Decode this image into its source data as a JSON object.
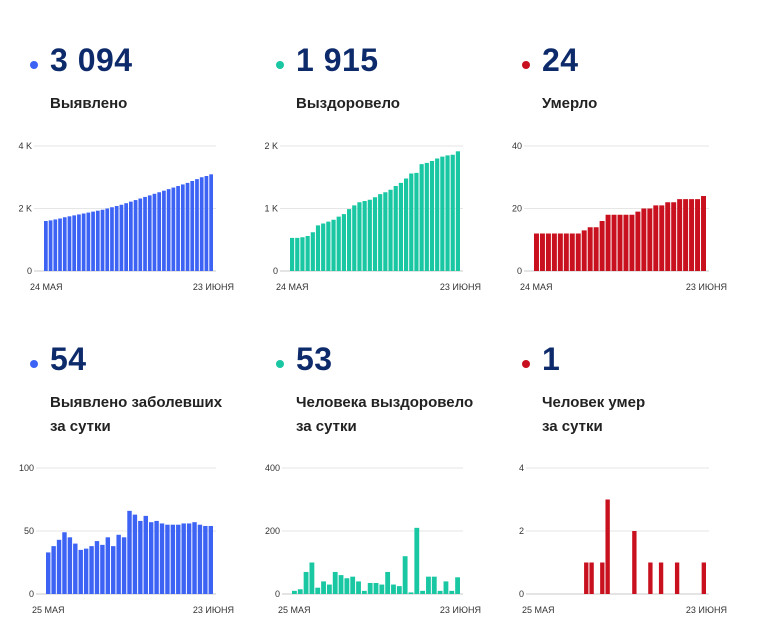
{
  "colors": {
    "blue": "#3d63f5",
    "green": "#19c7a3",
    "red": "#c8101e",
    "number": "#0d2a6b"
  },
  "panels": [
    {
      "dot_color": "#3d63f5",
      "value": "3 094",
      "label_lines": [
        "Выявлено"
      ]
    },
    {
      "dot_color": "#19c7a3",
      "value": "1 915",
      "label_lines": [
        "Выздоровело"
      ]
    },
    {
      "dot_color": "#c8101e",
      "value": "24",
      "label_lines": [
        "Умерло"
      ]
    },
    {
      "dot_color": "#3d63f5",
      "value": "54",
      "label_lines": [
        "Выявлено заболевших",
        "за сутки"
      ]
    },
    {
      "dot_color": "#19c7a3",
      "value": "53",
      "label_lines": [
        "Человека выздоровело",
        "за сутки"
      ]
    },
    {
      "dot_color": "#c8101e",
      "value": "1",
      "label_lines": [
        "Человек умер",
        "за сутки"
      ]
    }
  ],
  "chart_data": [
    {
      "type": "bar",
      "color": "#3d63f5",
      "ylim": [
        0,
        4000
      ],
      "yticks": [
        {
          "v": 0,
          "label": "0"
        },
        {
          "v": 2000,
          "label": "2 K"
        },
        {
          "v": 4000,
          "label": "4 K"
        }
      ],
      "xlabels": [
        "24 МАЯ",
        "23 ИЮНЯ"
      ],
      "values": [
        1600,
        1620,
        1650,
        1680,
        1720,
        1750,
        1780,
        1810,
        1840,
        1870,
        1900,
        1930,
        1960,
        2000,
        2040,
        2080,
        2120,
        2170,
        2220,
        2270,
        2320,
        2370,
        2420,
        2470,
        2520,
        2570,
        2620,
        2670,
        2720,
        2770,
        2820,
        2880,
        2940,
        3000,
        3040,
        3094
      ]
    },
    {
      "type": "bar",
      "color": "#19c7a3",
      "ylim": [
        0,
        2000
      ],
      "yticks": [
        {
          "v": 0,
          "label": "0"
        },
        {
          "v": 1000,
          "label": "1 K"
        },
        {
          "v": 2000,
          "label": "2 K"
        }
      ],
      "xlabels": [
        "24 МАЯ",
        "23 ИЮНЯ"
      ],
      "values": [
        530,
        530,
        540,
        560,
        620,
        730,
        760,
        790,
        820,
        870,
        910,
        990,
        1050,
        1100,
        1120,
        1140,
        1180,
        1230,
        1260,
        1300,
        1360,
        1410,
        1480,
        1560,
        1570,
        1710,
        1730,
        1760,
        1800,
        1830,
        1850,
        1860,
        1915
      ]
    },
    {
      "type": "bar",
      "color": "#c8101e",
      "ylim": [
        0,
        40
      ],
      "yticks": [
        {
          "v": 0,
          "label": "0"
        },
        {
          "v": 20,
          "label": "20"
        },
        {
          "v": 40,
          "label": "40"
        }
      ],
      "xlabels": [
        "24 МАЯ",
        "23 ИЮНЯ"
      ],
      "values": [
        12,
        12,
        12,
        12,
        12,
        12,
        12,
        12,
        13,
        14,
        14,
        16,
        18,
        18,
        18,
        18,
        18,
        19,
        20,
        20,
        21,
        21,
        22,
        22,
        23,
        23,
        23,
        23,
        24
      ]
    },
    {
      "type": "bar",
      "color": "#3d63f5",
      "ylim": [
        0,
        100
      ],
      "yticks": [
        {
          "v": 0,
          "label": "0"
        },
        {
          "v": 50,
          "label": "50"
        },
        {
          "v": 100,
          "label": "100"
        }
      ],
      "xlabels": [
        "25 МАЯ",
        "23 ИЮНЯ"
      ],
      "values": [
        33,
        38,
        43,
        49,
        45,
        40,
        35,
        36,
        38,
        42,
        39,
        45,
        38,
        47,
        45,
        66,
        63,
        58,
        62,
        57,
        58,
        56,
        55,
        55,
        55,
        56,
        56,
        57,
        55,
        54,
        54
      ]
    },
    {
      "type": "bar",
      "color": "#19c7a3",
      "ylim": [
        0,
        400
      ],
      "yticks": [
        {
          "v": 0,
          "label": "0"
        },
        {
          "v": 200,
          "label": "200"
        },
        {
          "v": 400,
          "label": "400"
        }
      ],
      "xlabels": [
        "25 МАЯ",
        "23 ИЮНЯ"
      ],
      "values": [
        10,
        15,
        70,
        100,
        20,
        40,
        30,
        70,
        60,
        50,
        55,
        40,
        10,
        35,
        35,
        30,
        70,
        30,
        25,
        120,
        5,
        210,
        10,
        55,
        55,
        10,
        40,
        10,
        53
      ]
    },
    {
      "type": "bar",
      "color": "#c8101e",
      "ylim": [
        0,
        4
      ],
      "yticks": [
        {
          "v": 0,
          "label": "0"
        },
        {
          "v": 2,
          "label": "2"
        },
        {
          "v": 4,
          "label": "4"
        }
      ],
      "xlabels": [
        "25 МАЯ",
        "23 ИЮНЯ"
      ],
      "values": [
        0,
        0,
        0,
        0,
        0,
        0,
        0,
        0,
        0,
        1,
        1,
        0,
        1,
        3,
        0,
        0,
        0,
        0,
        2,
        0,
        0,
        1,
        0,
        1,
        0,
        0,
        1,
        0,
        0,
        0,
        0,
        1
      ]
    }
  ]
}
